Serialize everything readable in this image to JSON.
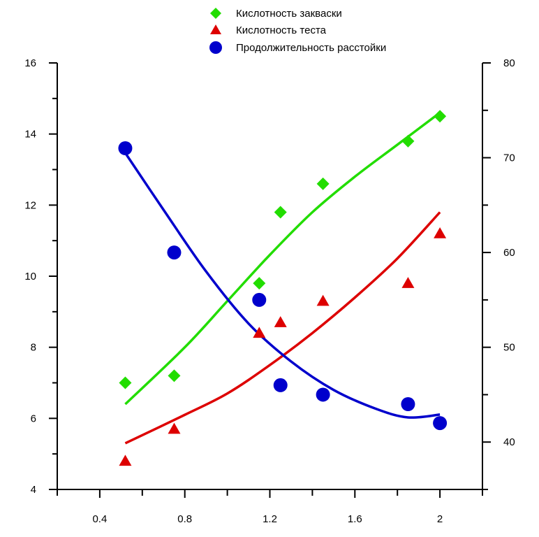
{
  "chart_data": {
    "type": "scatter",
    "title": "",
    "xlabel": "",
    "ylabel_left": "",
    "ylabel_right": "",
    "xlim": [
      0.2,
      2.2
    ],
    "ylim_left": [
      4,
      16
    ],
    "ylim_right": [
      35,
      80
    ],
    "x_ticks": [
      0.4,
      0.8,
      1.2,
      1.6,
      2
    ],
    "x_tick_labels": [
      "0.4",
      "0.8",
      "1.2",
      "1.6",
      "2"
    ],
    "y_left_ticks": [
      4,
      6,
      8,
      10,
      12,
      14,
      16
    ],
    "y_left_tick_labels": [
      "4",
      "6",
      "8",
      "10",
      "12",
      "14",
      "16"
    ],
    "y_right_ticks": [
      40,
      50,
      60,
      70,
      80
    ],
    "y_right_tick_labels": [
      "40",
      "50",
      "60",
      "70",
      "80"
    ],
    "grid": false,
    "legend_position": "top-center",
    "series": [
      {
        "name": "Кислотность закваски",
        "axis": "left",
        "marker": "diamond",
        "color": "#22dd00",
        "x": [
          0.52,
          0.75,
          1.15,
          1.25,
          1.45,
          1.85,
          2.0
        ],
        "y": [
          7.0,
          7.2,
          9.8,
          11.8,
          12.6,
          13.8,
          14.5
        ],
        "fit": [
          [
            0.52,
            6.4
          ],
          [
            0.8,
            8.0
          ],
          [
            1.0,
            9.3
          ],
          [
            1.2,
            10.6
          ],
          [
            1.4,
            11.8
          ],
          [
            1.6,
            12.8
          ],
          [
            1.8,
            13.7
          ],
          [
            2.0,
            14.6
          ]
        ]
      },
      {
        "name": "Кислотность теста",
        "axis": "left",
        "marker": "triangle",
        "color": "#dd0000",
        "x": [
          0.52,
          0.75,
          1.15,
          1.25,
          1.45,
          1.85,
          2.0
        ],
        "y": [
          4.8,
          5.7,
          8.4,
          8.7,
          9.3,
          9.8,
          11.2
        ],
        "fit": [
          [
            0.52,
            5.3
          ],
          [
            0.8,
            6.1
          ],
          [
            1.0,
            6.7
          ],
          [
            1.2,
            7.5
          ],
          [
            1.4,
            8.4
          ],
          [
            1.6,
            9.4
          ],
          [
            1.8,
            10.5
          ],
          [
            2.0,
            11.8
          ]
        ]
      },
      {
        "name": "Продолжительность расстойки",
        "axis": "right",
        "marker": "circle",
        "color": "#0000cc",
        "x": [
          0.52,
          0.75,
          1.15,
          1.25,
          1.45,
          1.85,
          2.0
        ],
        "y": [
          71,
          60,
          55,
          46,
          45,
          44,
          42
        ],
        "fit": [
          [
            0.52,
            70.5
          ],
          [
            0.7,
            64.5
          ],
          [
            0.9,
            58.0
          ],
          [
            1.1,
            52.5
          ],
          [
            1.3,
            48.5
          ],
          [
            1.5,
            45.5
          ],
          [
            1.7,
            43.5
          ],
          [
            1.85,
            42.6
          ],
          [
            2.0,
            42.9
          ]
        ]
      }
    ]
  }
}
